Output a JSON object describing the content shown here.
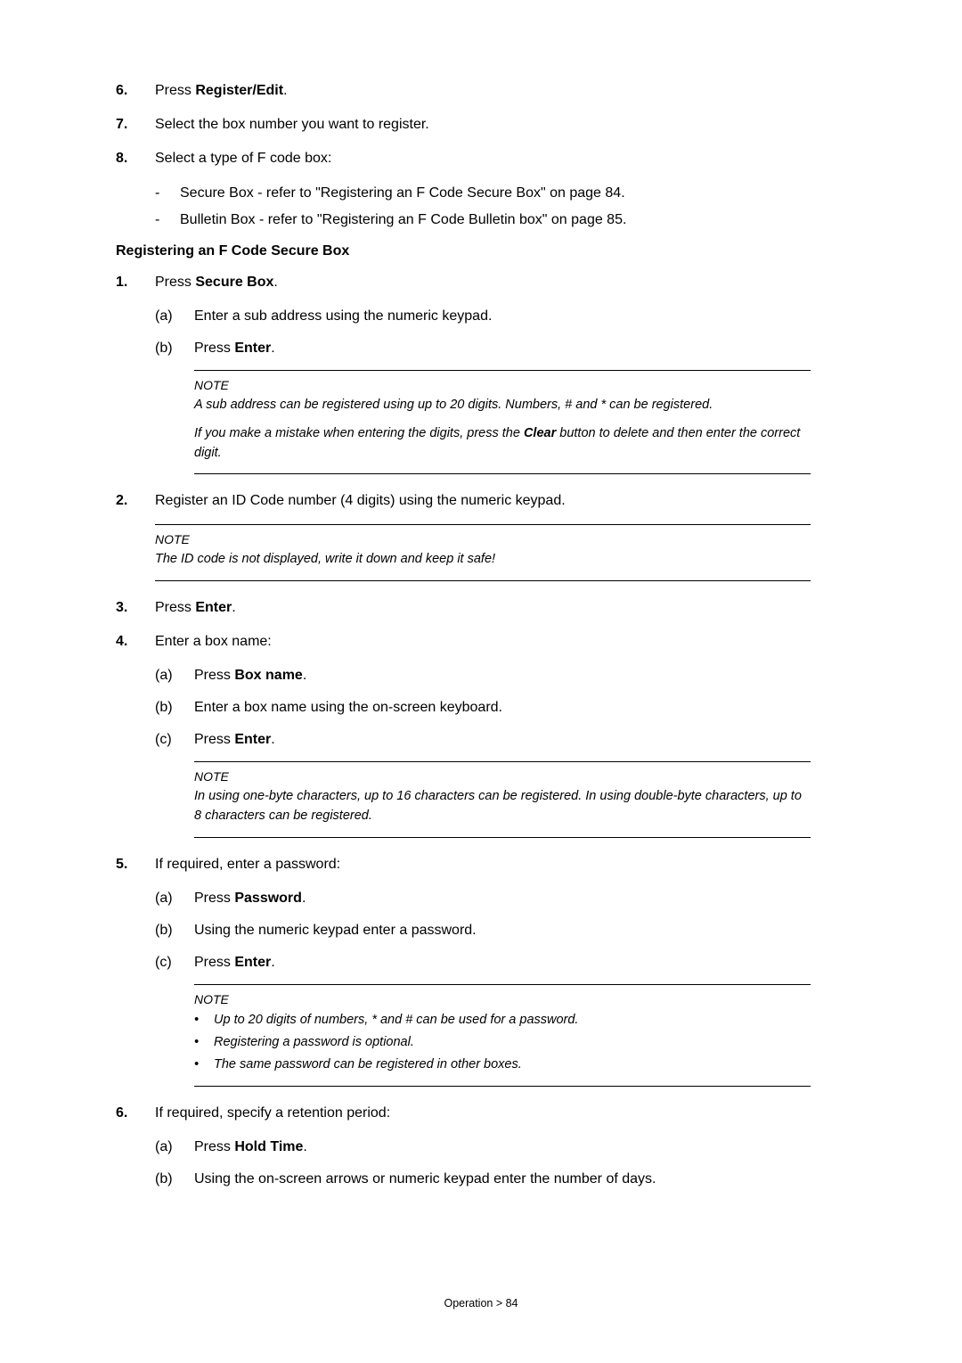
{
  "step6": {
    "num": "6.",
    "pre": "Press ",
    "bold": "Register/Edit",
    "post": "."
  },
  "step7": {
    "num": "7.",
    "text": "Select the box number you want to register."
  },
  "step8": {
    "num": "8.",
    "text": "Select a type of F code box:"
  },
  "step8_dash1": "Secure Box - refer to \"Registering an F Code Secure Box\" on page 84.",
  "step8_dash2": "Bulletin Box - refer to \"Registering an F Code Bulletin box\" on page 85.",
  "heading1": "Registering an F Code Secure Box",
  "s1": {
    "num": "1.",
    "pre": "Press ",
    "bold": "Secure Box",
    "post": "."
  },
  "s1a": {
    "lbl": "(a)",
    "text": "Enter a sub address using the numeric keypad."
  },
  "s1b": {
    "lbl": "(b)",
    "pre": "Press ",
    "bold": "Enter",
    "post": "."
  },
  "note1_label": "NOTE",
  "note1_line1": "A sub address can be registered using up to 20 digits. Numbers, # and * can be registered.",
  "note1_line2_pre": "If you make a mistake when entering the digits, press the ",
  "note1_line2_bold": "Clear",
  "note1_line2_post": " button to delete and then enter the correct digit.",
  "s2": {
    "num": "2.",
    "text": "Register an ID Code number (4 digits) using the numeric keypad."
  },
  "note2_label": "NOTE",
  "note2_text": "The ID code is not displayed, write it down and keep it safe!",
  "s3": {
    "num": "3.",
    "pre": "Press ",
    "bold": "Enter",
    "post": "."
  },
  "s4": {
    "num": "4.",
    "text": "Enter a box name:"
  },
  "s4a": {
    "lbl": "(a)",
    "pre": "Press ",
    "bold": "Box name",
    "post": "."
  },
  "s4b": {
    "lbl": "(b)",
    "text": "Enter a box name using the on-screen keyboard."
  },
  "s4c": {
    "lbl": "(c)",
    "pre": "Press ",
    "bold": "Enter",
    "post": "."
  },
  "note3_label": "NOTE",
  "note3_text": "In using one-byte characters, up to 16 characters can be registered. In using double-byte characters, up to 8 characters can be registered.",
  "s5": {
    "num": "5.",
    "text": "If required, enter a password:"
  },
  "s5a": {
    "lbl": "(a)",
    "pre": "Press ",
    "bold": "Password",
    "post": "."
  },
  "s5b": {
    "lbl": "(b)",
    "text": "Using the numeric keypad enter a password."
  },
  "s5c": {
    "lbl": "(c)",
    "pre": "Press ",
    "bold": "Enter",
    "post": "."
  },
  "note4_label": "NOTE",
  "note4_b1": "Up to 20 digits of numbers, * and # can be used for a password.",
  "note4_b2": "Registering a password is optional.",
  "note4_b3": "The same password can be registered in other boxes.",
  "s6": {
    "num": "6.",
    "text": "If required, specify a retention period:"
  },
  "s6a": {
    "lbl": "(a)",
    "pre": "Press ",
    "bold": "Hold Time",
    "post": "."
  },
  "s6b": {
    "lbl": "(b)",
    "text": "Using the on-screen arrows or numeric keypad enter the number of days."
  },
  "footer": "Operation > 84"
}
